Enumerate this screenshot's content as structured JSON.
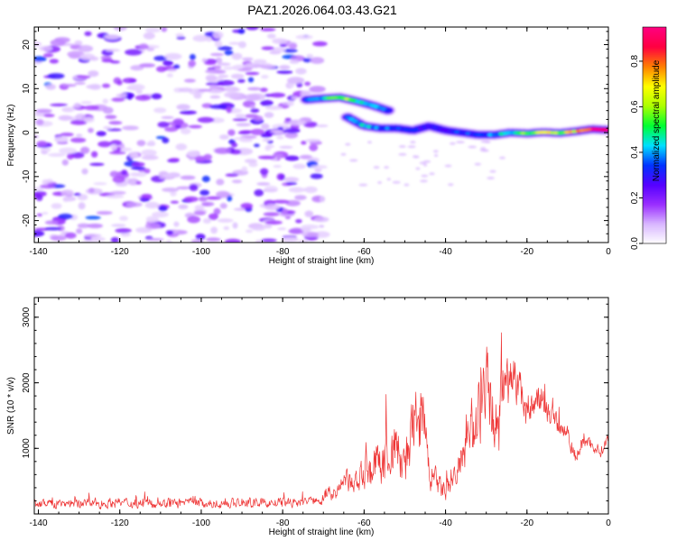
{
  "title": "PAZ1.2026.064.03.43.G21",
  "chart_data": [
    {
      "type": "heatmap",
      "name": "spectrogram",
      "xlabel": "Height of straight line (km)",
      "ylabel": "Frequency (Hz)",
      "xlim": [
        -141,
        0
      ],
      "ylim": [
        -25,
        24
      ],
      "xticks": [
        -140,
        -120,
        -100,
        -80,
        -60,
        -40,
        -20,
        0
      ],
      "xtick_labels": [
        "-140",
        "-120",
        "-100",
        "-80",
        "-60",
        "-40",
        "-20",
        "0"
      ],
      "yticks": [
        -20,
        -10,
        0,
        10,
        20
      ],
      "ytick_labels": [
        "-20",
        "-10",
        "0",
        "10",
        "20"
      ],
      "noise_region": {
        "x": [
          -141,
          -70
        ],
        "y": [
          -25,
          24
        ],
        "typical_amplitude": 0.2
      },
      "ridge_upper": {
        "x": [
          -74,
          -70,
          -66,
          -62,
          -58,
          -54
        ],
        "y": [
          7.5,
          7.8,
          8,
          7.2,
          6.2,
          5
        ],
        "amplitude": [
          0.35,
          0.45,
          0.6,
          0.5,
          0.4,
          0.35
        ]
      },
      "ridge_main": {
        "x": [
          -64,
          -60,
          -56,
          -52,
          -48,
          -44,
          -40,
          -36,
          -32,
          -28,
          -24,
          -20,
          -16,
          -12,
          -8,
          -4,
          0
        ],
        "y": [
          3.5,
          1.5,
          1,
          1,
          0.5,
          1.5,
          0.5,
          0,
          -0.5,
          -0.5,
          0,
          -0.2,
          0.1,
          -0.1,
          0.3,
          0.8,
          0.6
        ],
        "amplitude": [
          0.35,
          0.45,
          0.35,
          0.35,
          0.3,
          0.3,
          0.3,
          0.35,
          0.3,
          0.4,
          0.45,
          0.55,
          0.65,
          0.6,
          0.7,
          0.95,
          0.9
        ]
      },
      "colorbar": {
        "label": "Normalized spectral amplitude",
        "range": [
          0,
          0.95
        ],
        "ticks": [
          0.0,
          0.2,
          0.4,
          0.6,
          0.8
        ],
        "tick_labels": [
          "0.0",
          "0.2",
          "0.4",
          "0.6",
          "0.8"
        ],
        "colors": [
          "#ffffff",
          "#d9b8ff",
          "#9a2eff",
          "#5500ff",
          "#0033ff",
          "#00e0ff",
          "#00ff33",
          "#aaff00",
          "#ffff00",
          "#ff8000",
          "#ff0040",
          "#ff0080"
        ]
      }
    },
    {
      "type": "line",
      "name": "snr",
      "xlabel": "Height of straight line (km)",
      "ylabel": "SNR (10 * v/v)",
      "xlim": [
        -141,
        0
      ],
      "ylim": [
        0,
        3300
      ],
      "xticks": [
        -140,
        -120,
        -100,
        -80,
        -60,
        -40,
        -20,
        0
      ],
      "xtick_labels": [
        "-140",
        "-120",
        "-100",
        "-80",
        "-60",
        "-40",
        "-20",
        "0"
      ],
      "yticks": [
        1000,
        2000,
        3000
      ],
      "ytick_labels": [
        "1000",
        "2000",
        "3000"
      ],
      "color": "#ee3333",
      "series": [
        {
          "name": "SNR",
          "x": [
            -141,
            -136,
            -131,
            -126,
            -121,
            -116,
            -111,
            -106,
            -101,
            -96,
            -91,
            -86,
            -81,
            -76,
            -72,
            -70,
            -68,
            -66,
            -64,
            -62,
            -60,
            -58,
            -56,
            -54,
            -52,
            -50,
            -48,
            -46,
            -44,
            -42,
            -40,
            -38,
            -36,
            -34,
            -32,
            -30,
            -28,
            -26,
            -24,
            -22,
            -20,
            -18,
            -16,
            -14,
            -12,
            -10,
            -8,
            -6,
            -4,
            -2,
            0
          ],
          "y": [
            150,
            160,
            170,
            160,
            170,
            165,
            170,
            160,
            165,
            160,
            170,
            165,
            170,
            175,
            200,
            260,
            320,
            380,
            500,
            420,
            700,
            650,
            820,
            900,
            1000,
            650,
            1250,
            1600,
            620,
            450,
            320,
            550,
            800,
            1100,
            1700,
            2050,
            1400,
            1850,
            2150,
            1950,
            1600,
            1750,
            1650,
            1500,
            1350,
            1250,
            850,
            1150,
            1050,
            950,
            1150
          ],
          "amplitude": [
            100,
            110,
            120,
            110,
            110,
            110,
            110,
            110,
            110,
            110,
            110,
            110,
            110,
            120,
            130,
            150,
            180,
            220,
            280,
            300,
            450,
            500,
            600,
            650,
            700,
            500,
            800,
            900,
            400,
            300,
            250,
            350,
            500,
            700,
            1000,
            900,
            700,
            800,
            500,
            450,
            400,
            350,
            350,
            300,
            300,
            250,
            200,
            200,
            150,
            150,
            150
          ]
        }
      ]
    }
  ]
}
